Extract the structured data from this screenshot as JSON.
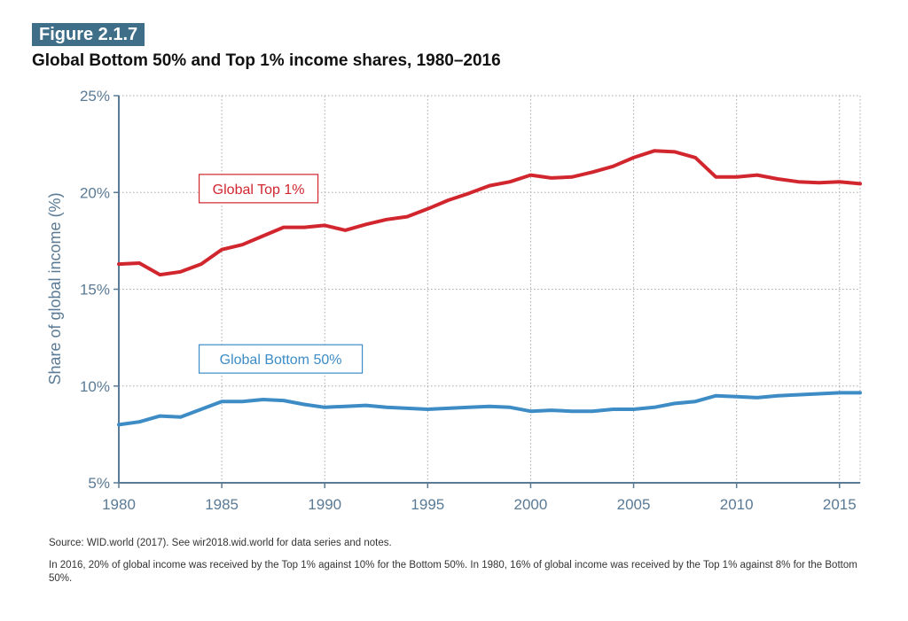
{
  "figure": {
    "label": "Figure 2.1.7",
    "title": "Global Bottom 50% and Top 1% income shares, 1980–2016"
  },
  "footer": {
    "source": "Source: WID.world (2017). See wir2018.wid.world for data series and notes.",
    "note": "In 2016, 20% of global income was received by the Top 1% against 10% for the Bottom 50%. In 1980, 16% of global income was received by the Top 1% against 8% for the Bottom 50%."
  },
  "colors": {
    "top1": "#d2262f",
    "bottom50": "#3d8cc6",
    "axis": "#5a7a95",
    "grid": "#a8a8a8"
  },
  "chart_data": {
    "type": "line",
    "title": "Global Bottom 50% and Top 1% income shares, 1980–2016",
    "xlabel": "",
    "ylabel": "Share of global income (%)",
    "xlim": [
      1980,
      2016
    ],
    "ylim": [
      5,
      25
    ],
    "grid": true,
    "x_ticks": [
      1980,
      1985,
      1990,
      1995,
      2000,
      2005,
      2010,
      2015
    ],
    "y_ticks": [
      5,
      10,
      15,
      20,
      25
    ],
    "y_tick_labels": [
      "5%",
      "10%",
      "15%",
      "20%",
      "25%"
    ],
    "x": [
      1980,
      1981,
      1982,
      1983,
      1984,
      1985,
      1986,
      1987,
      1988,
      1989,
      1990,
      1991,
      1992,
      1993,
      1994,
      1995,
      1996,
      1997,
      1998,
      1999,
      2000,
      2001,
      2002,
      2003,
      2004,
      2005,
      2006,
      2007,
      2008,
      2009,
      2010,
      2011,
      2012,
      2013,
      2014,
      2015,
      2016
    ],
    "series": [
      {
        "name": "Global Top 1%",
        "color": "#d2262f",
        "values": [
          16.3,
          16.35,
          15.75,
          15.9,
          16.3,
          17.05,
          17.3,
          17.75,
          18.2,
          18.2,
          18.3,
          18.05,
          18.35,
          18.6,
          18.75,
          19.15,
          19.6,
          19.95,
          20.35,
          20.55,
          20.9,
          20.75,
          20.8,
          21.05,
          21.35,
          21.8,
          22.15,
          22.1,
          21.8,
          20.8,
          20.8,
          20.9,
          20.7,
          20.55,
          20.5,
          20.55,
          20.45
        ]
      },
      {
        "name": "Global Bottom 50%",
        "color": "#3d8cc6",
        "values": [
          8.0,
          8.15,
          8.45,
          8.4,
          8.8,
          9.2,
          9.2,
          9.3,
          9.25,
          9.05,
          8.9,
          8.95,
          9.0,
          8.9,
          8.85,
          8.8,
          8.85,
          8.9,
          8.95,
          8.9,
          8.7,
          8.75,
          8.7,
          8.7,
          8.8,
          8.8,
          8.9,
          9.1,
          9.2,
          9.5,
          9.45,
          9.4,
          9.5,
          9.55,
          9.6,
          9.65,
          9.65
        ]
      }
    ]
  }
}
